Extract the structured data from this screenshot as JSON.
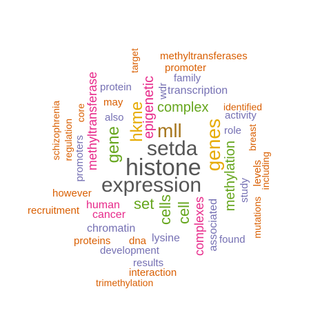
{
  "palette": {
    "dark_gray": "#555555",
    "orange": "#d95f02",
    "purple": "#7570b3",
    "magenta": "#e7298a",
    "green": "#66a61e",
    "gold": "#e6ab02",
    "brown": "#a6761d"
  },
  "words": [
    {
      "text": "histone",
      "color": "dark_gray"
    },
    {
      "text": "expression",
      "color": "dark_gray"
    },
    {
      "text": "setda",
      "color": "dark_gray"
    },
    {
      "text": "mll",
      "color": "brown"
    },
    {
      "text": "genes",
      "color": "gold"
    },
    {
      "text": "gene",
      "color": "green"
    },
    {
      "text": "hkme",
      "color": "gold"
    },
    {
      "text": "complex",
      "color": "green"
    },
    {
      "text": "methylation",
      "color": "green"
    },
    {
      "text": "epigenetic",
      "color": "magenta"
    },
    {
      "text": "methyltransferase",
      "color": "magenta"
    },
    {
      "text": "set",
      "color": "green"
    },
    {
      "text": "cells",
      "color": "green"
    },
    {
      "text": "cell",
      "color": "green"
    },
    {
      "text": "human",
      "color": "magenta"
    },
    {
      "text": "cancer",
      "color": "magenta"
    },
    {
      "text": "chromatin",
      "color": "purple"
    },
    {
      "text": "complexes",
      "color": "magenta"
    },
    {
      "text": "associated",
      "color": "purple"
    },
    {
      "text": "lysine",
      "color": "purple"
    },
    {
      "text": "development",
      "color": "purple"
    },
    {
      "text": "transcription",
      "color": "purple"
    },
    {
      "text": "protein",
      "color": "purple"
    },
    {
      "text": "family",
      "color": "purple"
    },
    {
      "text": "role",
      "color": "purple"
    },
    {
      "text": "activity",
      "color": "purple"
    },
    {
      "text": "found",
      "color": "purple"
    },
    {
      "text": "results",
      "color": "purple"
    },
    {
      "text": "study",
      "color": "purple"
    },
    {
      "text": "promoters",
      "color": "purple"
    },
    {
      "text": "wdr",
      "color": "purple"
    },
    {
      "text": "also",
      "color": "purple"
    },
    {
      "text": "methyltransferases",
      "color": "orange"
    },
    {
      "text": "promoter",
      "color": "orange"
    },
    {
      "text": "target",
      "color": "orange"
    },
    {
      "text": "may",
      "color": "orange"
    },
    {
      "text": "identified",
      "color": "orange"
    },
    {
      "text": "breast",
      "color": "orange"
    },
    {
      "text": "levels",
      "color": "orange"
    },
    {
      "text": "including",
      "color": "orange"
    },
    {
      "text": "mutations",
      "color": "orange"
    },
    {
      "text": "however",
      "color": "orange"
    },
    {
      "text": "recruitment",
      "color": "orange"
    },
    {
      "text": "proteins",
      "color": "orange"
    },
    {
      "text": "dna",
      "color": "orange"
    },
    {
      "text": "interaction",
      "color": "orange"
    },
    {
      "text": "trimethylation",
      "color": "orange"
    },
    {
      "text": "schizophrenia",
      "color": "orange"
    },
    {
      "text": "regulation",
      "color": "orange"
    },
    {
      "text": "core",
      "color": "orange"
    }
  ]
}
